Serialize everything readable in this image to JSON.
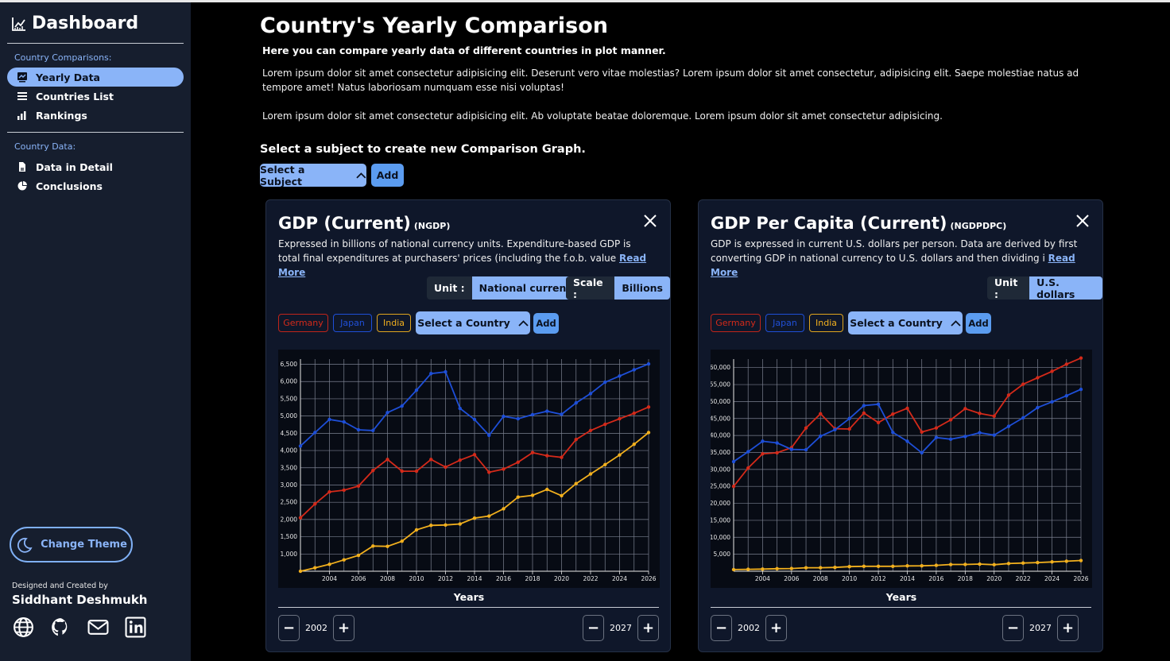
{
  "sidebar": {
    "brand": "Dashboard",
    "section1": "Country Comparisons:",
    "section2": "Country Data:",
    "items": [
      {
        "label": "Yearly Data",
        "icon": "chart-icon",
        "active": true
      },
      {
        "label": "Countries List",
        "icon": "list-icon"
      },
      {
        "label": "Rankings",
        "icon": "bar-chart-icon"
      },
      {
        "label": "Data in Detail",
        "icon": "document-icon"
      },
      {
        "label": "Conclusions",
        "icon": "pie-chart-icon"
      }
    ],
    "theme_button": "Change Theme",
    "credit_small": "Designed and Created by",
    "credit_name": "Siddhant Deshmukh",
    "social": [
      "globe-icon",
      "github-icon",
      "mail-icon",
      "linkedin-icon"
    ]
  },
  "main": {
    "title": "Country's Yearly Comparison",
    "subtitle": "Here you can compare yearly data of different countries in plot manner.",
    "para1": "Lorem ipsum dolor sit amet consectetur adipisicing elit. Deserunt vero vitae molestias? Lorem ipsum dolor sit amet consectetur, adipisicing elit. Saepe molestiae natus ad tempore amet! Natus laboriosam numquam esse nisi voluptas!",
    "para2": "Lorem ipsum dolor sit amet consectetur adipisicing elit. Ab voluptate beatae doloremque. Lorem ipsum dolor sit amet consectetur adipisicing.",
    "subject_prompt": "Select a subject to create new Comparison Graph.",
    "select_subject": "Select a Subject",
    "add": "Add"
  },
  "colors": {
    "germany": "#d42a1a",
    "japan": "#1e4fd8",
    "india": "#f2b01e",
    "accent": "#8ab4f8"
  },
  "cards": [
    {
      "title": "GDP (Current)",
      "code": "(NGDP)",
      "desc": "Expressed in billions of national currency units. Expenditure-based GDP is total final expenditures at purchasers' prices (including the f.o.b. value ",
      "read_more": "Read More",
      "unit_label": "Unit :",
      "unit_value": "National currency",
      "scale_label": "Scale :",
      "scale_value": "Billions",
      "countries": [
        "Germany",
        "Japan",
        "India"
      ],
      "select_country": "Select a Country",
      "add": "Add",
      "xlabel": "Years",
      "start_year": "2002",
      "end_year": "2027"
    },
    {
      "title": "GDP Per Capita (Current)",
      "code": "(NGDPDPC)",
      "desc": "GDP is expressed in current U.S. dollars per person. Data are derived by first converting GDP in national currency to U.S. dollars and then dividing i ",
      "read_more": "Read More",
      "unit_label": "Unit :",
      "unit_value": "U.S. dollars",
      "countries": [
        "Germany",
        "Japan",
        "India"
      ],
      "select_country": "Select a Country",
      "add": "Add",
      "xlabel": "Years",
      "start_year": "2002",
      "end_year": "2027"
    }
  ],
  "chart_data": [
    {
      "type": "line",
      "xlabel": "Years",
      "x": [
        2002,
        2003,
        2004,
        2005,
        2006,
        2007,
        2008,
        2009,
        2010,
        2011,
        2012,
        2013,
        2014,
        2015,
        2016,
        2017,
        2018,
        2019,
        2020,
        2021,
        2022,
        2023,
        2024,
        2025,
        2026
      ],
      "xticks": [
        "2004",
        "2006",
        "2008",
        "2010",
        "2012",
        "2014",
        "2016",
        "2018",
        "2020",
        "2022",
        "2024",
        "2026"
      ],
      "yticks": [
        "1,000",
        "1,500",
        "2,000",
        "2,500",
        "3,000",
        "3,500",
        "4,000",
        "4,500",
        "5,000",
        "5,500",
        "6,000",
        "6,500"
      ],
      "ylim": [
        500,
        6650
      ],
      "grid": true,
      "series": [
        {
          "name": "Germany",
          "values": [
            2050,
            2450,
            2800,
            2850,
            2970,
            3420,
            3740,
            3400,
            3400,
            3740,
            3520,
            3720,
            3880,
            3370,
            3460,
            3660,
            3940,
            3850,
            3800,
            4320,
            4580,
            4760,
            4920,
            5080,
            5260
          ]
        },
        {
          "name": "Japan",
          "values": [
            4130,
            4520,
            4900,
            4830,
            4600,
            4580,
            5100,
            5290,
            5750,
            6230,
            6280,
            5220,
            4900,
            4440,
            4990,
            4920,
            5040,
            5140,
            5050,
            5380,
            5650,
            5980,
            6160,
            6340,
            6510
          ]
        },
        {
          "name": "India",
          "values": [
            500,
            600,
            700,
            830,
            960,
            1230,
            1220,
            1370,
            1700,
            1830,
            1840,
            1870,
            2040,
            2100,
            2310,
            2650,
            2700,
            2870,
            2690,
            3040,
            3320,
            3590,
            3870,
            4180,
            4520
          ]
        }
      ]
    },
    {
      "type": "line",
      "xlabel": "Years",
      "x": [
        2002,
        2003,
        2004,
        2005,
        2006,
        2007,
        2008,
        2009,
        2010,
        2011,
        2012,
        2013,
        2014,
        2015,
        2016,
        2017,
        2018,
        2019,
        2020,
        2021,
        2022,
        2023,
        2024,
        2025,
        2026
      ],
      "xticks": [
        "2004",
        "2006",
        "2008",
        "2010",
        "2012",
        "2014",
        "2016",
        "2018",
        "2020",
        "2022",
        "2024",
        "2026"
      ],
      "yticks": [
        "5,000",
        "10,000",
        "15,000",
        "20,000",
        "25,000",
        "30,000",
        "35,000",
        "40,000",
        "45,000",
        "50,000",
        "55,000",
        "60,000"
      ],
      "ylim": [
        0,
        62500
      ],
      "grid": true,
      "series": [
        {
          "name": "Germany",
          "values": [
            25000,
            30400,
            34600,
            34900,
            36400,
            42200,
            46400,
            42000,
            41900,
            46600,
            43800,
            46300,
            48000,
            41000,
            42200,
            44600,
            47900,
            46500,
            45700,
            51900,
            55100,
            57000,
            58900,
            61000,
            62800
          ]
        },
        {
          "name": "Japan",
          "values": [
            32300,
            35200,
            38300,
            37800,
            35900,
            35800,
            39800,
            41700,
            45000,
            48800,
            49200,
            40900,
            38300,
            34900,
            39400,
            38900,
            39700,
            40800,
            40100,
            42700,
            45200,
            48200,
            49900,
            51700,
            53600
          ]
        },
        {
          "name": "India",
          "values": [
            480,
            560,
            640,
            740,
            800,
            1020,
            1030,
            1120,
            1360,
            1460,
            1450,
            1450,
            1580,
            1600,
            1730,
            1980,
            2000,
            2100,
            1930,
            2260,
            2400,
            2550,
            2750,
            2950,
            3150
          ]
        }
      ]
    }
  ]
}
